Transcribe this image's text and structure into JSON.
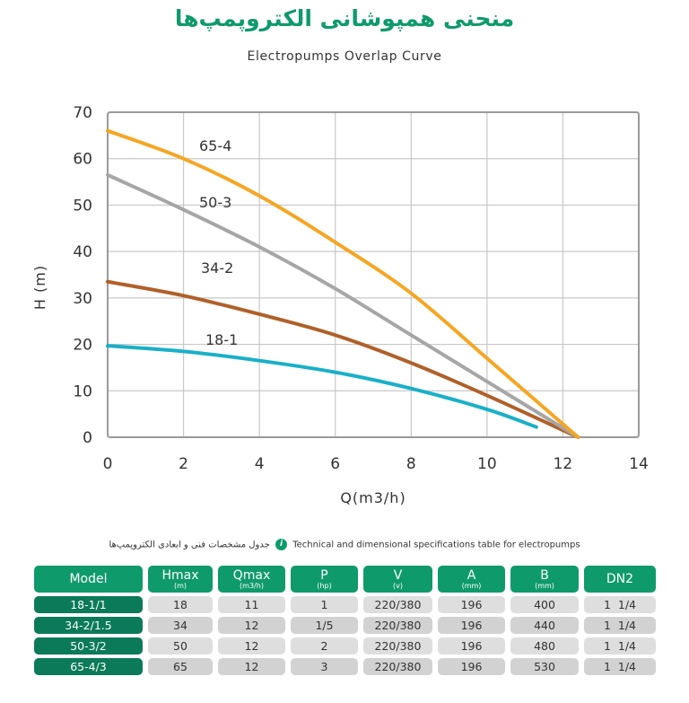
{
  "header": {
    "title_fa": "منحنی همپوشانی الکتروپمپ‌ها",
    "title_en": "Electropumps Overlap Curve"
  },
  "chart_data": {
    "type": "line",
    "title": "Electropumps Overlap Curve",
    "xlabel": "Q(m3/h)",
    "ylabel": "H (m)",
    "xlim": [
      0,
      14
    ],
    "ylim": [
      0,
      70
    ],
    "x_ticks": [
      "0",
      "2",
      "4",
      "6",
      "8",
      "10",
      "12",
      "14"
    ],
    "y_ticks": [
      "0",
      "10",
      "20",
      "30",
      "40",
      "50",
      "60",
      "70"
    ],
    "grid": true,
    "legend": "inline labels",
    "series": [
      {
        "name": "65-4",
        "color": "#f5a623",
        "x": [
          0,
          2,
          4,
          6,
          8,
          10,
          12.4
        ],
        "values": [
          66,
          60,
          52,
          42,
          31,
          17,
          0
        ]
      },
      {
        "name": "50-3",
        "color": "#a6a6a6",
        "x": [
          0,
          2,
          4,
          6,
          8,
          10,
          12.4
        ],
        "values": [
          56.5,
          49,
          41,
          32,
          22,
          12,
          0
        ]
      },
      {
        "name": "34-2",
        "color": "#b0602a",
        "x": [
          0,
          2,
          4,
          6,
          8,
          10,
          12.4
        ],
        "values": [
          33.5,
          30.5,
          26.5,
          22,
          16,
          9,
          0
        ]
      },
      {
        "name": "18-1",
        "color": "#1ab0c8",
        "x": [
          0,
          2,
          4,
          6,
          8,
          10,
          11.3
        ],
        "values": [
          19.7,
          18.5,
          16.5,
          14,
          10.5,
          6,
          2.2
        ]
      }
    ]
  },
  "table": {
    "caption_fa": "جدول مشخصات فنی و ابعادی الکتروپمپ‌ها",
    "caption_en": "Technical and dimensional specifications table for electropumps",
    "info_icon": "i",
    "headers": [
      {
        "label": "Model",
        "unit": ""
      },
      {
        "label": "Hmax",
        "unit": "(m)"
      },
      {
        "label": "Qmax",
        "unit": "(m3/h)"
      },
      {
        "label": "P",
        "unit": "(hp)"
      },
      {
        "label": "V",
        "unit": "(v)"
      },
      {
        "label": "A",
        "unit": "(mm)"
      },
      {
        "label": "B",
        "unit": "(mm)"
      },
      {
        "label": "DN2",
        "unit": ""
      }
    ],
    "rows": [
      [
        "18-1/1",
        "18",
        "11",
        "1",
        "220/380",
        "196",
        "400",
        "1  1/4"
      ],
      [
        "34-2/1.5",
        "34",
        "12",
        "1/5",
        "220/380",
        "196",
        "440",
        "1  1/4"
      ],
      [
        "50-3/2",
        "50",
        "12",
        "2",
        "220/380",
        "196",
        "480",
        "1  1/4"
      ],
      [
        "65-4/3",
        "65",
        "12",
        "3",
        "220/380",
        "196",
        "530",
        "1  1/4"
      ]
    ]
  },
  "colors": {
    "brand_green": "#0f9a6c",
    "model_cell_green": "#0b7a58",
    "grid": "#c8c8c8"
  }
}
